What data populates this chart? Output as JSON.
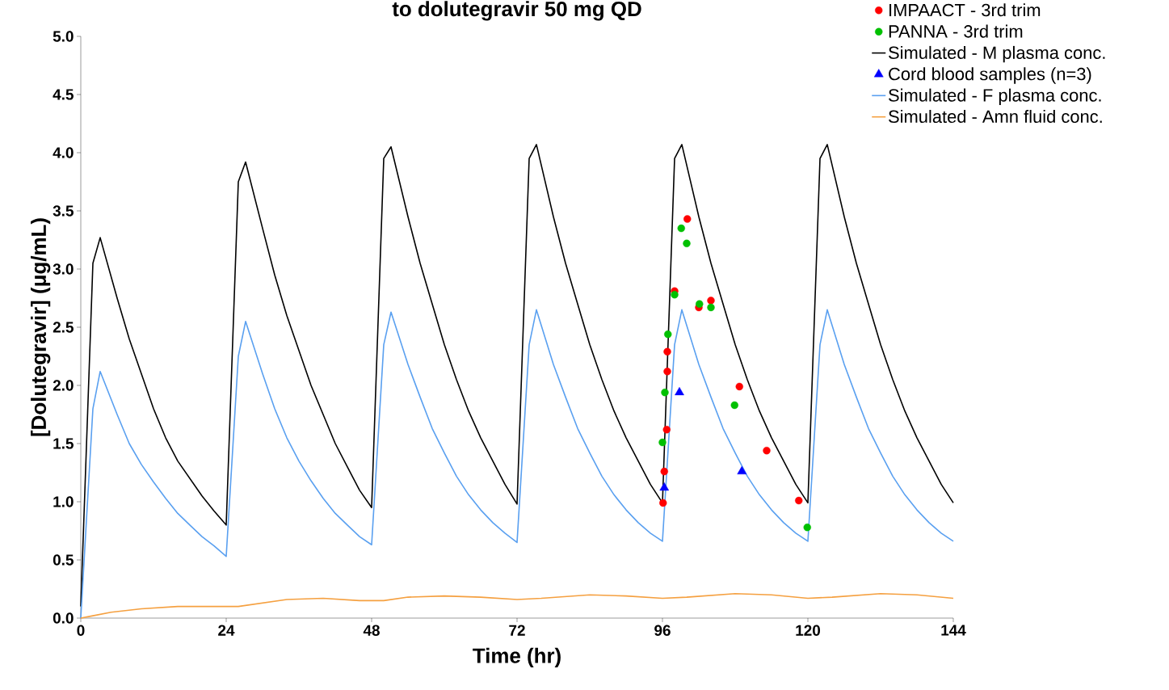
{
  "chart_data": {
    "type": "line",
    "title": "to dolutegravir 50 mg QD",
    "xlabel": "Time  (hr)",
    "ylabel": "[Dolutegravir] (μg/mL)",
    "xlim": [
      0,
      144
    ],
    "xticks": [
      0,
      24,
      48,
      72,
      96,
      120,
      144
    ],
    "ylim": [
      0,
      5
    ],
    "yticks": [
      {
        "value": 0,
        "label": "0.0"
      },
      {
        "value": 0.5,
        "label": "0.5"
      },
      {
        "value": 1,
        "label": "1.0"
      },
      {
        "value": 1.5,
        "label": "1.5"
      },
      {
        "value": 2,
        "label": "2.0"
      },
      {
        "value": 2.5,
        "label": "2.5"
      },
      {
        "value": 3,
        "label": "3.0"
      },
      {
        "value": 3.5,
        "label": "3.5"
      },
      {
        "value": 4,
        "label": "4.0"
      },
      {
        "value": 4.5,
        "label": "4.5"
      },
      {
        "value": 5,
        "label": "5.0"
      }
    ],
    "grid": false,
    "legend": "top right",
    "series": [
      {
        "name": "IMPAACT - 3rd trim",
        "type": "scatter",
        "marker": "circle",
        "color": "#ff0000",
        "x": [
          96.1,
          96.3,
          96.7,
          96.8,
          96.8,
          98.0,
          100.1,
          102.0,
          104.0,
          108.7,
          113.2,
          118.5
        ],
        "values": [
          0.99,
          1.26,
          1.62,
          2.12,
          2.29,
          2.81,
          3.43,
          2.67,
          2.73,
          1.99,
          1.44,
          1.01
        ]
      },
      {
        "name": "PANNA - 3rd trim",
        "type": "scatter",
        "marker": "circle",
        "color": "#00c000",
        "x": [
          96.0,
          96.4,
          96.9,
          98.0,
          99.1,
          100.0,
          102.1,
          104.0,
          107.9,
          119.9
        ],
        "values": [
          1.51,
          1.94,
          2.44,
          2.78,
          3.35,
          3.22,
          2.7,
          2.67,
          1.83,
          0.78
        ]
      },
      {
        "name": "Simulated - M plasma conc.",
        "marker": "none",
        "color": "#000000",
        "x": [
          0,
          2,
          3.2,
          6,
          8,
          10,
          12,
          14,
          16,
          18,
          20,
          22,
          24,
          26,
          27.2,
          30,
          32,
          34,
          36,
          38,
          40,
          42,
          44,
          46,
          48,
          50,
          51.2,
          54,
          56,
          58,
          60,
          62,
          64,
          66,
          68,
          70,
          72,
          74,
          75.2,
          78,
          80,
          82,
          84,
          86,
          88,
          90,
          92,
          94,
          96,
          98,
          99.2,
          102,
          104,
          106,
          108,
          110,
          112,
          114,
          116,
          118,
          120,
          122,
          123.2,
          126,
          128,
          130,
          132,
          134,
          136,
          138,
          140,
          142,
          144
        ],
        "values": [
          0.1,
          3.05,
          3.27,
          2.75,
          2.4,
          2.1,
          1.8,
          1.55,
          1.35,
          1.2,
          1.05,
          0.92,
          0.8,
          3.75,
          3.92,
          3.35,
          2.95,
          2.6,
          2.3,
          2.0,
          1.75,
          1.5,
          1.3,
          1.1,
          0.95,
          3.95,
          4.05,
          3.45,
          3.05,
          2.7,
          2.35,
          2.05,
          1.78,
          1.55,
          1.35,
          1.15,
          0.98,
          3.95,
          4.07,
          3.45,
          3.05,
          2.7,
          2.35,
          2.05,
          1.78,
          1.55,
          1.35,
          1.15,
          0.99,
          3.95,
          4.07,
          3.45,
          3.05,
          2.7,
          2.35,
          2.05,
          1.78,
          1.55,
          1.35,
          1.15,
          0.99,
          3.95,
          4.07,
          3.45,
          3.05,
          2.7,
          2.35,
          2.05,
          1.78,
          1.55,
          1.35,
          1.15,
          0.99
        ]
      },
      {
        "name": "Cord blood samples (n=3)",
        "type": "scatter",
        "marker": "triangle",
        "color": "#0000ff",
        "x": [
          96.3,
          98.8,
          109.1
        ],
        "values": [
          1.12,
          1.94,
          1.26
        ]
      },
      {
        "name": "Simulated - F plasma conc.",
        "marker": "none",
        "color": "#5aa0f0",
        "x": [
          0,
          2,
          3.2,
          6,
          8,
          10,
          12,
          14,
          16,
          18,
          20,
          22,
          24,
          26,
          27.2,
          30,
          32,
          34,
          36,
          38,
          40,
          42,
          44,
          46,
          48,
          50,
          51.2,
          54,
          56,
          58,
          60,
          62,
          64,
          66,
          68,
          70,
          72,
          74,
          75.2,
          78,
          80,
          82,
          84,
          86,
          88,
          90,
          92,
          94,
          96,
          98,
          99.2,
          102,
          104,
          106,
          108,
          110,
          112,
          114,
          116,
          118,
          120,
          122,
          123.2,
          126,
          128,
          130,
          132,
          134,
          136,
          138,
          140,
          142,
          144
        ],
        "values": [
          0,
          1.8,
          2.12,
          1.75,
          1.5,
          1.32,
          1.17,
          1.03,
          0.9,
          0.8,
          0.7,
          0.62,
          0.53,
          2.25,
          2.55,
          2.1,
          1.8,
          1.55,
          1.35,
          1.18,
          1.03,
          0.9,
          0.8,
          0.7,
          0.63,
          2.35,
          2.63,
          2.18,
          1.9,
          1.63,
          1.42,
          1.22,
          1.06,
          0.93,
          0.82,
          0.73,
          0.65,
          2.35,
          2.65,
          2.18,
          1.9,
          1.63,
          1.42,
          1.22,
          1.06,
          0.93,
          0.82,
          0.73,
          0.66,
          2.35,
          2.65,
          2.18,
          1.9,
          1.63,
          1.42,
          1.22,
          1.06,
          0.93,
          0.82,
          0.73,
          0.66,
          2.35,
          2.65,
          2.18,
          1.9,
          1.63,
          1.42,
          1.22,
          1.06,
          0.93,
          0.82,
          0.73,
          0.66
        ]
      },
      {
        "name": "Simulated - Amn fluid conc.",
        "marker": "none",
        "color": "#f5a040",
        "x": [
          0,
          2,
          5,
          10,
          16,
          22,
          26,
          30,
          34,
          40,
          46,
          50,
          54,
          60,
          66,
          72,
          76,
          84,
          90,
          96,
          100,
          108,
          114,
          120,
          124,
          132,
          138,
          144
        ],
        "values": [
          0,
          0.02,
          0.05,
          0.08,
          0.1,
          0.1,
          0.1,
          0.13,
          0.16,
          0.17,
          0.15,
          0.15,
          0.18,
          0.19,
          0.18,
          0.16,
          0.17,
          0.2,
          0.19,
          0.17,
          0.18,
          0.21,
          0.2,
          0.17,
          0.18,
          0.21,
          0.2,
          0.17
        ]
      }
    ]
  }
}
